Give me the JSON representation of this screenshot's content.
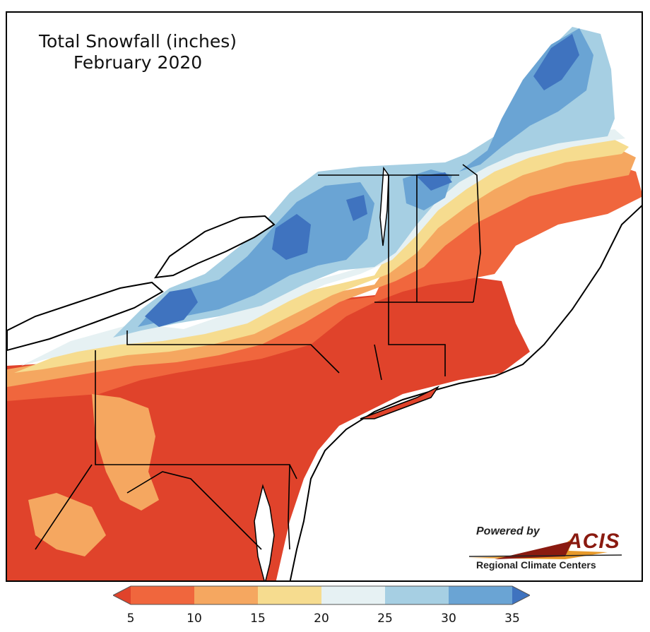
{
  "title": {
    "line1": "Total Snowfall (inches)",
    "line2": "February 2020"
  },
  "logo": {
    "powered_by": "Powered by",
    "acis": "ACIS",
    "regional": "Regional Climate Centers"
  },
  "legend": {
    "ticks": [
      "5",
      "10",
      "15",
      "20",
      "25",
      "30",
      "35"
    ],
    "bins": [
      {
        "range": "<5",
        "color": "#e0432b"
      },
      {
        "range": "5-10",
        "color": "#f0663d"
      },
      {
        "range": "10-15",
        "color": "#f5a760"
      },
      {
        "range": "15-20",
        "color": "#f6dc8f"
      },
      {
        "range": "20-25",
        "color": "#e6f1f3"
      },
      {
        "range": "25-30",
        "color": "#a6cfe3"
      },
      {
        "range": "30-35",
        "color": "#6aa4d4"
      },
      {
        "range": ">35",
        "color": "#3f73bf"
      }
    ]
  },
  "colors": {
    "red": "#e0432b",
    "orange": "#f0663d",
    "light_orange": "#f5a760",
    "yellow": "#f6dc8f",
    "white_blue": "#e6f1f3",
    "light_blue": "#a6cfe3",
    "mid_blue": "#6aa4d4",
    "dark_blue": "#3f73bf",
    "acis_red": "#8a1a10",
    "acis_gold": "#e89a2a"
  }
}
